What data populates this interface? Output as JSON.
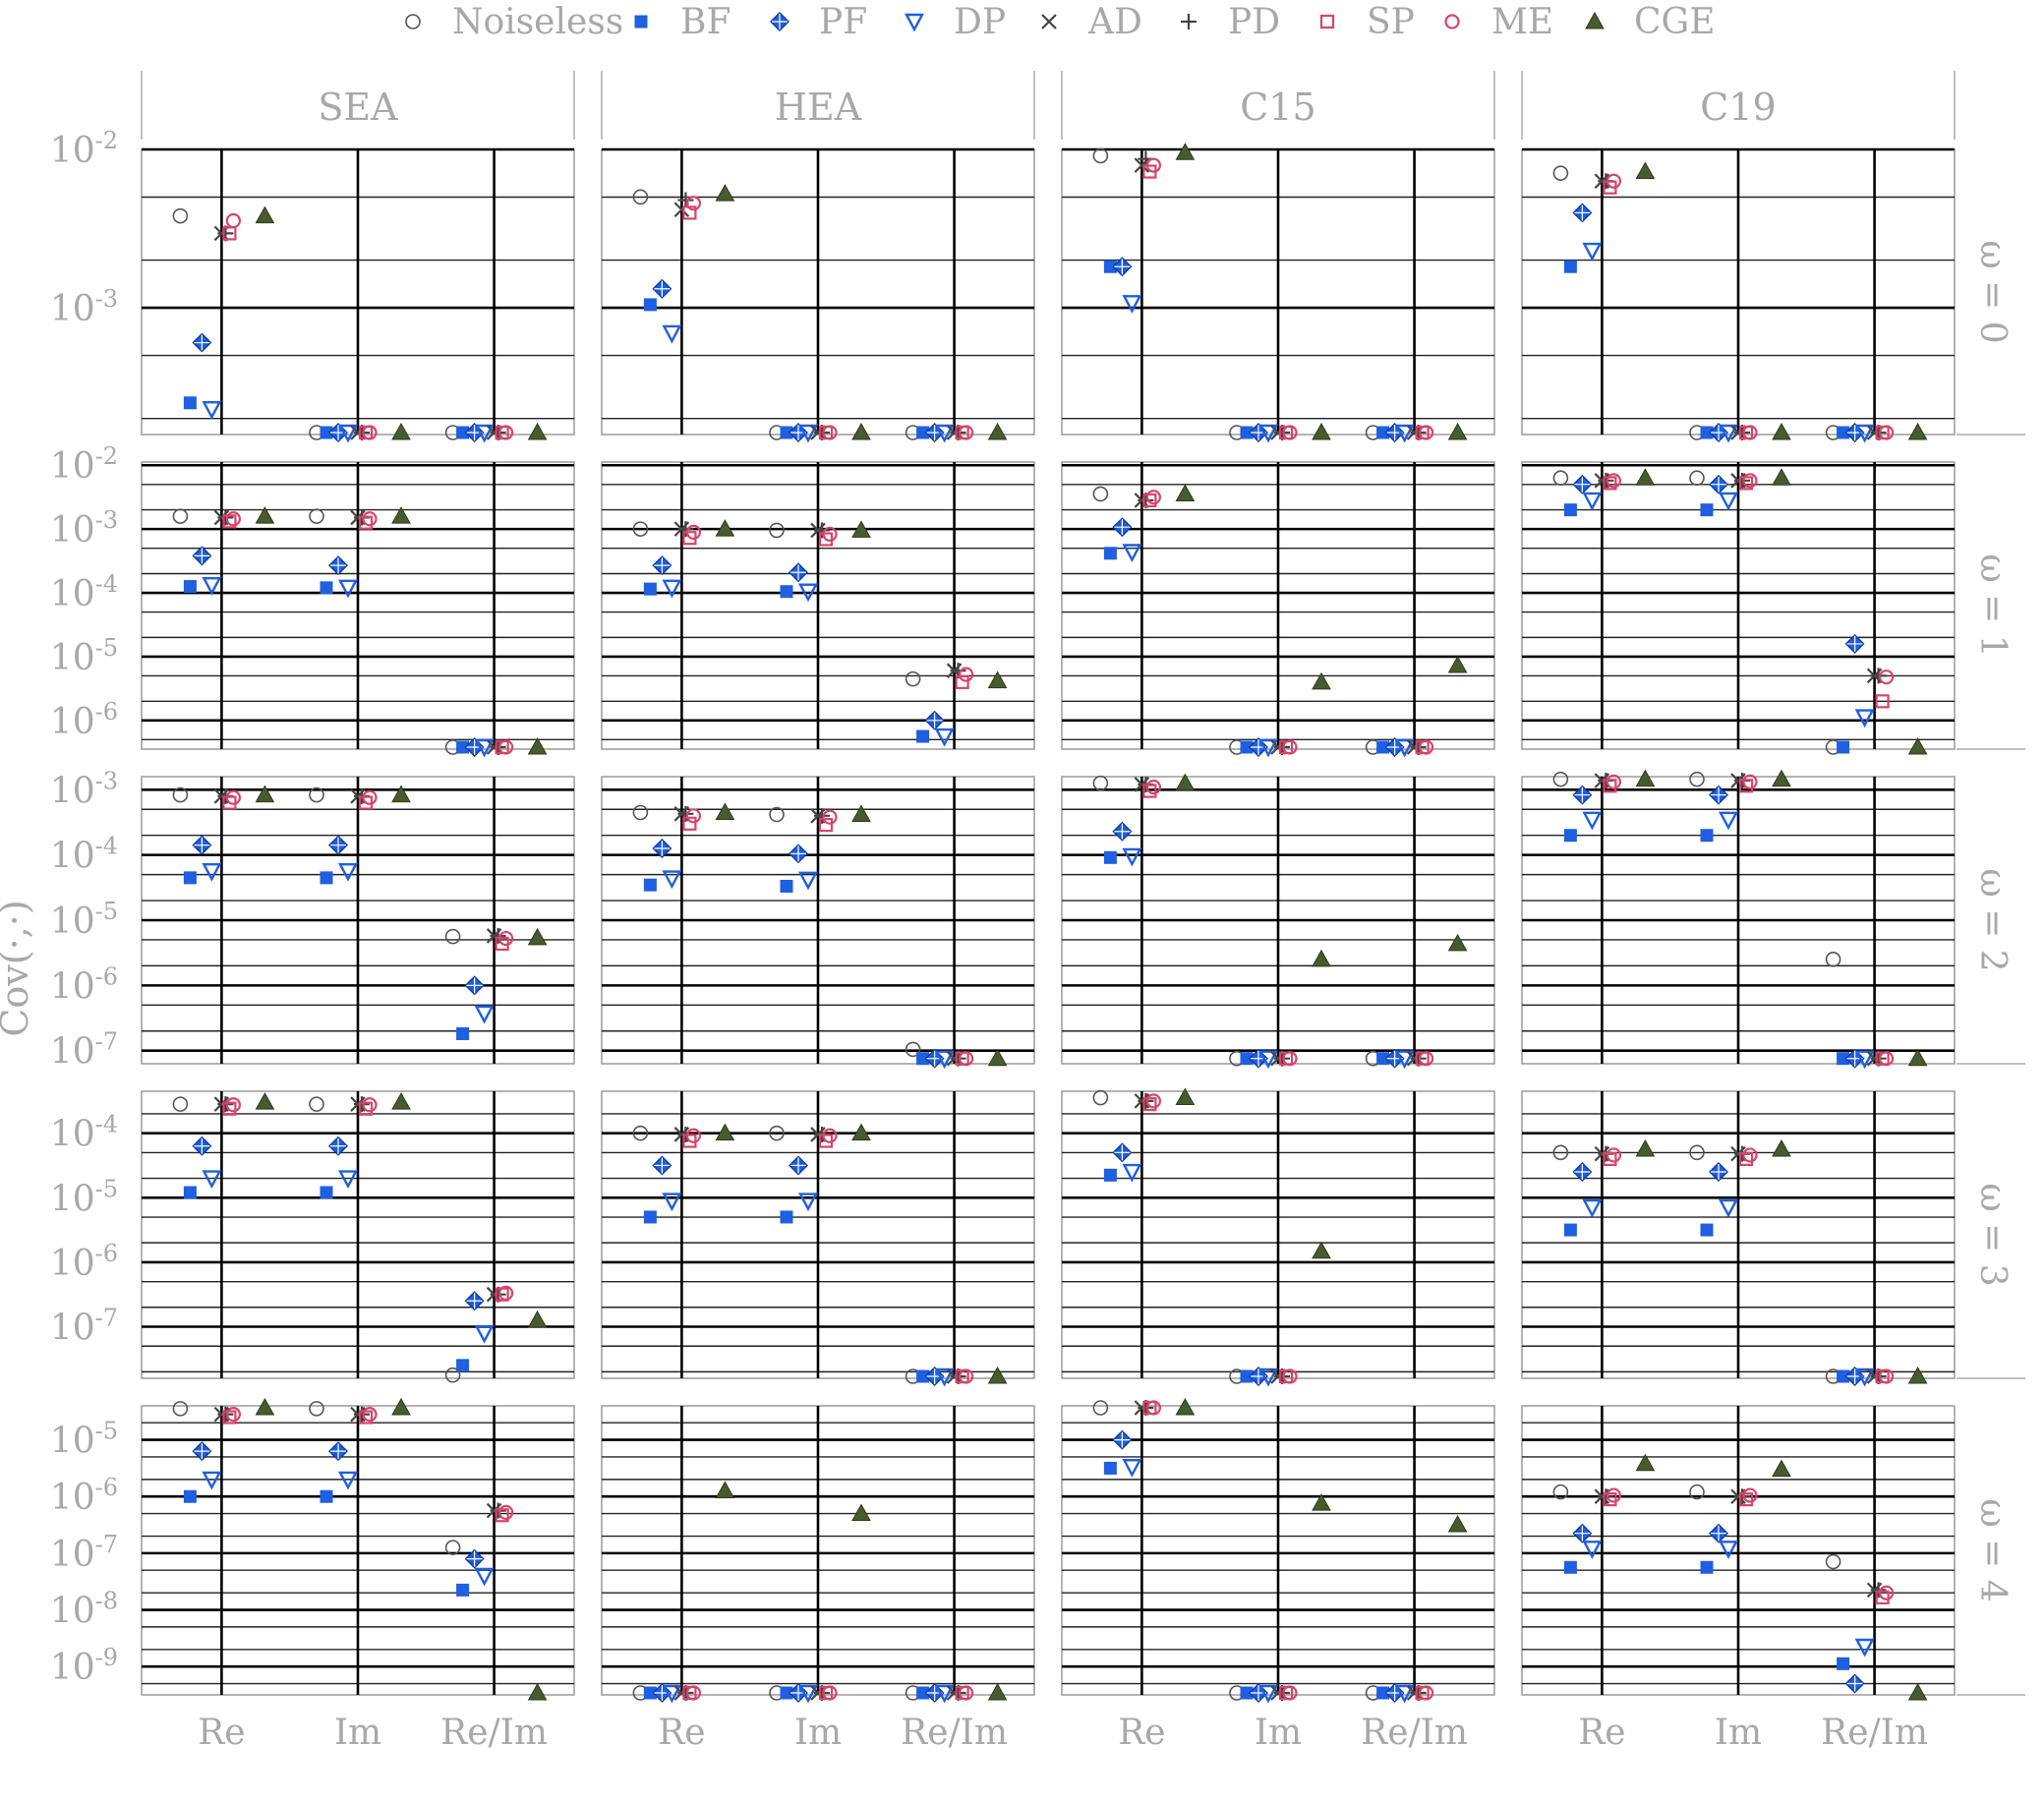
{
  "chart_data": {
    "type": "scatter",
    "ylabel": "Cov(·,·)",
    "y_scale": "log",
    "legend": {
      "placement": "top",
      "entries": [
        {
          "name": "Noiseless",
          "marker": "circle-open",
          "color": "#555555"
        },
        {
          "name": "BF",
          "marker": "square-filled",
          "color": "#1f5fe0"
        },
        {
          "name": "PF",
          "marker": "diamond-plus",
          "color": "#1f5fe0"
        },
        {
          "name": "DP",
          "marker": "triangle-down-open",
          "color": "#1f5fe0"
        },
        {
          "name": "AD",
          "marker": "x",
          "color": "#444444"
        },
        {
          "name": "PD",
          "marker": "plus",
          "color": "#444444"
        },
        {
          "name": "SP",
          "marker": "square-open",
          "color": "#d9436a"
        },
        {
          "name": "ME",
          "marker": "circle-open",
          "color": "#d9436a"
        },
        {
          "name": "CGE",
          "marker": "triangle-up-filled",
          "color": "#4a5a30"
        }
      ]
    },
    "columns": [
      "SEA",
      "HEA",
      "C15",
      "C19"
    ],
    "rows": [
      "ω = 0",
      "ω = 1",
      "ω = 2",
      "ω = 3",
      "ω = 4"
    ],
    "categories": [
      "Re",
      "Im",
      "Re/Im"
    ],
    "row_tick_labels": [
      [
        "10^-2",
        "10^-3"
      ],
      [
        "10^-2",
        "10^-3",
        "10^-4",
        "10^-5",
        "10^-6"
      ],
      [
        "10^-3",
        "10^-4",
        "10^-5",
        "10^-6",
        "10^-7"
      ],
      [
        "10^-4",
        "10^-5",
        "10^-6",
        "10^-7"
      ],
      [
        "10^-5",
        "10^-6",
        "10^-7",
        "10^-8",
        "10^-9"
      ]
    ],
    "row_ylim_log10": [
      [
        -3.8,
        -2.0
      ],
      [
        -6.45,
        -1.95
      ],
      [
        -7.2,
        -2.8
      ],
      [
        -7.8,
        -3.35
      ],
      [
        -9.5,
        -4.4
      ]
    ],
    "panels": [
      [
        {
          "Re": [
            -2.42,
            -3.6,
            -3.22,
            -3.64,
            -2.53,
            -2.53,
            -2.53,
            -2.45,
            -2.42
          ],
          "Im": [
            -4.1,
            -4.1,
            -4.1,
            -4.1,
            -4.1,
            -4.1,
            -4.1,
            -4.1,
            -4.1
          ],
          "Re/Im": [
            -4.1,
            -4.1,
            -4.1,
            -4.1,
            -4.1,
            -4.1,
            -4.1,
            -4.1,
            -4.1
          ]
        },
        {
          "Re": [
            -2.3,
            -2.98,
            -2.88,
            -3.16,
            -2.38,
            -2.32,
            -2.4,
            -2.34,
            -2.28
          ],
          "Im": [
            -4.1,
            -4.1,
            -4.1,
            -4.1,
            -4.1,
            -4.1,
            -4.1,
            -4.1,
            -4.1
          ],
          "Re/Im": [
            -4.1,
            -4.1,
            -4.1,
            -4.1,
            -4.1,
            -4.1,
            -4.1,
            -4.1,
            -4.1
          ]
        },
        {
          "Re": [
            -2.04,
            -2.74,
            -2.74,
            -2.97,
            -2.1,
            -2.06,
            -2.14,
            -2.1,
            -2.02
          ],
          "Im": [
            -4.1,
            -4.1,
            -4.1,
            -4.1,
            -4.1,
            -4.1,
            -4.1,
            -4.1,
            -4.1
          ],
          "Re/Im": [
            -4.1,
            -4.1,
            -4.1,
            -4.1,
            -4.1,
            -4.1,
            -4.1,
            -4.1,
            -4.1
          ]
        },
        {
          "Re": [
            -2.15,
            -2.74,
            -2.4,
            -2.64,
            -2.2,
            -2.2,
            -2.24,
            -2.2,
            -2.14
          ],
          "Im": [
            -4.1,
            -4.1,
            -4.1,
            -4.1,
            -4.1,
            -4.1,
            -4.1,
            -4.1,
            -4.1
          ],
          "Re/Im": [
            -4.1,
            -4.1,
            -4.1,
            -4.1,
            -4.1,
            -4.1,
            -4.1,
            -4.1,
            -4.1
          ]
        }
      ],
      [
        {
          "Re": [
            -2.8,
            -3.9,
            -3.42,
            -3.88,
            -2.82,
            -2.82,
            -2.88,
            -2.84,
            -2.8
          ],
          "Im": [
            -2.8,
            -3.92,
            -3.57,
            -3.92,
            -2.82,
            -2.82,
            -2.9,
            -2.84,
            -2.8
          ],
          "Re/Im": [
            -6.45,
            -6.45,
            -6.45,
            -6.45,
            -6.45,
            -6.45,
            -6.45,
            -6.45,
            -6.45
          ]
        },
        {
          "Re": [
            -3.0,
            -3.94,
            -3.57,
            -3.92,
            -3.0,
            -3.0,
            -3.14,
            -3.05,
            -3.0
          ],
          "Im": [
            -3.02,
            -3.98,
            -3.68,
            -3.98,
            -3.02,
            -3.02,
            -3.16,
            -3.08,
            -3.02
          ],
          "Re/Im": [
            -5.35,
            -6.25,
            -6.0,
            -6.25,
            -5.22,
            -5.22,
            -5.4,
            -5.28,
            -5.38
          ]
        },
        {
          "Re": [
            -2.45,
            -3.38,
            -2.97,
            -3.36,
            -2.55,
            -2.55,
            -2.55,
            -2.5,
            -2.45
          ],
          "Im": [
            -6.45,
            -6.45,
            -6.45,
            -6.45,
            -6.45,
            -6.45,
            -6.45,
            -6.45,
            -5.4
          ],
          "Re/Im": [
            -6.45,
            -6.45,
            -6.45,
            -6.45,
            -6.45,
            -6.45,
            -6.45,
            -6.45,
            -5.14
          ]
        },
        {
          "Re": [
            -2.2,
            -2.7,
            -2.3,
            -2.55,
            -2.24,
            -2.24,
            -2.28,
            -2.24,
            -2.2
          ],
          "Im": [
            -2.2,
            -2.7,
            -2.3,
            -2.55,
            -2.24,
            -2.24,
            -2.28,
            -2.24,
            -2.2
          ],
          "Re/Im": [
            -6.45,
            -6.45,
            -4.8,
            -5.95,
            -5.3,
            -5.3,
            -5.7,
            -5.32,
            -6.42
          ]
        }
      ],
      [
        {
          "Re": [
            -3.08,
            -4.35,
            -3.85,
            -4.25,
            -3.1,
            -3.1,
            -3.2,
            -3.12,
            -3.08
          ],
          "Im": [
            -3.08,
            -4.35,
            -3.85,
            -4.25,
            -3.1,
            -3.1,
            -3.2,
            -3.12,
            -3.08
          ],
          "Re/Im": [
            -5.25,
            -6.74,
            -6.0,
            -6.43,
            -5.24,
            -5.24,
            -5.36,
            -5.28,
            -5.27
          ]
        },
        {
          "Re": [
            -3.35,
            -4.46,
            -3.9,
            -4.36,
            -3.37,
            -3.37,
            -3.52,
            -3.4,
            -3.35
          ],
          "Im": [
            -3.38,
            -4.48,
            -3.98,
            -4.38,
            -3.4,
            -3.4,
            -3.54,
            -3.42,
            -3.38
          ],
          "Re/Im": [
            -6.98,
            -7.12,
            -7.12,
            -7.12,
            -7.12,
            -7.12,
            -7.12,
            -7.12,
            -7.12
          ]
        },
        {
          "Re": [
            -2.9,
            -4.04,
            -3.64,
            -4.02,
            -2.92,
            -2.92,
            -3.02,
            -2.96,
            -2.9
          ],
          "Im": [
            -7.12,
            -7.12,
            -7.12,
            -7.12,
            -7.12,
            -7.12,
            -7.12,
            -7.12,
            -5.6
          ],
          "Re/Im": [
            -7.12,
            -7.12,
            -7.12,
            -7.12,
            -7.12,
            -7.12,
            -7.12,
            -7.12,
            -5.36
          ]
        },
        {
          "Re": [
            -2.84,
            -3.7,
            -3.08,
            -3.46,
            -2.86,
            -2.86,
            -2.94,
            -2.88,
            -2.84
          ],
          "Im": [
            -2.84,
            -3.7,
            -3.08,
            -3.46,
            -2.86,
            -2.86,
            -2.94,
            -2.88,
            -2.84
          ],
          "Re/Im": [
            -5.6,
            -7.12,
            -7.12,
            -7.12,
            -7.12,
            -7.12,
            -7.12,
            -7.12,
            -7.12
          ]
        }
      ],
      [
        {
          "Re": [
            -3.55,
            -4.92,
            -4.2,
            -4.7,
            -3.55,
            -3.55,
            -3.62,
            -3.56,
            -3.52
          ],
          "Im": [
            -3.55,
            -4.92,
            -4.2,
            -4.7,
            -3.55,
            -3.55,
            -3.62,
            -3.56,
            -3.52
          ],
          "Re/Im": [
            -7.75,
            -7.6,
            -6.6,
            -7.1,
            -6.5,
            -6.5,
            -6.5,
            -6.48,
            -6.9
          ]
        },
        {
          "Re": [
            -4.0,
            -5.3,
            -4.5,
            -5.05,
            -4.02,
            -4.02,
            -4.12,
            -4.04,
            -4.0
          ],
          "Im": [
            -4.0,
            -5.3,
            -4.5,
            -5.05,
            -4.02,
            -4.02,
            -4.12,
            -4.04,
            -4.0
          ],
          "Re/Im": [
            -7.8,
            -7.8,
            -7.8,
            -7.8,
            -7.8,
            -7.8,
            -7.8,
            -7.8,
            -7.8
          ]
        },
        {
          "Re": [
            -3.45,
            -4.65,
            -4.3,
            -4.6,
            -3.5,
            -3.5,
            -3.55,
            -3.5,
            -3.45
          ],
          "Im": [
            -7.8,
            -7.8,
            -7.8,
            -7.8,
            -7.8,
            -7.8,
            -7.8,
            -7.8,
            -5.83
          ]
        },
        {
          "Re": [
            -4.3,
            -5.5,
            -4.6,
            -5.15,
            -4.32,
            -4.32,
            -4.4,
            -4.34,
            -4.25
          ],
          "Im": [
            -4.3,
            -5.5,
            -4.6,
            -5.15,
            -4.32,
            -4.32,
            -4.4,
            -4.34,
            -4.25
          ],
          "Re/Im": [
            -7.8,
            -7.8,
            -7.8,
            -7.8,
            -7.8,
            -7.8,
            -7.8,
            -7.8,
            -7.8
          ]
        }
      ],
      [
        {
          "Re": [
            -4.45,
            -6.0,
            -5.2,
            -5.7,
            -4.55,
            -4.55,
            -4.6,
            -4.55,
            -4.42
          ],
          "Im": [
            -4.45,
            -6.0,
            -5.2,
            -5.7,
            -4.55,
            -4.55,
            -4.6,
            -4.55,
            -4.42
          ],
          "Re/Im": [
            -6.9,
            -7.65,
            -7.1,
            -7.4,
            -6.25,
            -6.25,
            -6.33,
            -6.28,
            -9.5
          ]
        },
        {
          "Re": [
            -9.5,
            -9.5,
            -9.5,
            -9.5,
            -9.5,
            -9.5,
            -9.5,
            -9.5,
            -5.9
          ],
          "Im": [
            -9.5,
            -9.5,
            -9.5,
            -9.5,
            -9.5,
            -9.5,
            -9.5,
            -9.5,
            -6.3
          ],
          "Re/Im": [
            -9.5,
            -9.5,
            -9.5,
            -9.5,
            -9.5,
            -9.5,
            -9.5,
            -9.5,
            -9.5
          ]
        },
        {
          "Re": [
            -4.28,
            -5.5,
            -5.0,
            -5.48,
            -4.38,
            -4.38,
            -4.4,
            -4.36,
            -4.28
          ],
          "Im": [
            -9.5,
            -9.5,
            -9.5,
            -9.5,
            -9.5,
            -9.5,
            -9.5,
            -9.5,
            -6.12
          ],
          "Re/Im": [
            -9.5,
            -9.5,
            -9.5,
            -9.5,
            -9.5,
            -9.5,
            -9.5,
            -9.5,
            -6.5
          ]
        },
        {
          "Re": [
            -5.92,
            -7.25,
            -6.65,
            -6.92,
            -6.0,
            -6.0,
            -6.05,
            -5.98,
            -5.42
          ],
          "Im": [
            -5.92,
            -7.25,
            -6.65,
            -6.92,
            -6.0,
            -6.0,
            -6.05,
            -5.98,
            -5.52
          ],
          "Re/Im": [
            -7.15,
            -8.95,
            -9.3,
            -8.65,
            -7.65,
            -7.65,
            -7.78,
            -7.7,
            -9.5
          ]
        }
      ]
    ]
  }
}
